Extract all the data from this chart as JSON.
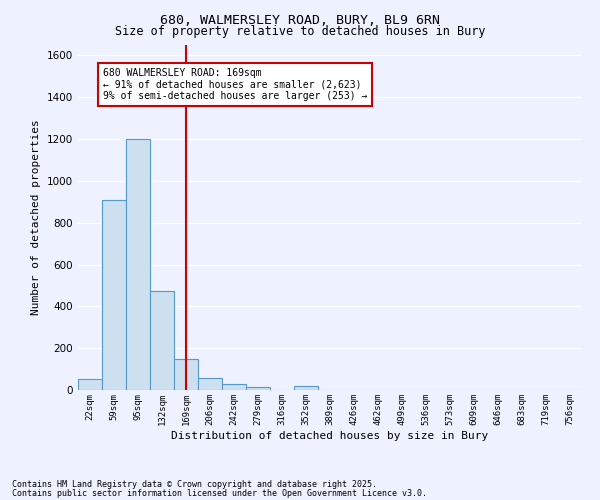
{
  "title1": "680, WALMERSLEY ROAD, BURY, BL9 6RN",
  "title2": "Size of property relative to detached houses in Bury",
  "xlabel": "Distribution of detached houses by size in Bury",
  "ylabel": "Number of detached properties",
  "bin_labels": [
    "22sqm",
    "59sqm",
    "95sqm",
    "132sqm",
    "169sqm",
    "206sqm",
    "242sqm",
    "279sqm",
    "316sqm",
    "352sqm",
    "389sqm",
    "426sqm",
    "462sqm",
    "499sqm",
    "536sqm",
    "573sqm",
    "609sqm",
    "646sqm",
    "683sqm",
    "719sqm",
    "756sqm"
  ],
  "bin_values": [
    55,
    910,
    1200,
    475,
    150,
    58,
    28,
    12,
    0,
    18,
    0,
    0,
    0,
    0,
    0,
    0,
    0,
    0,
    0,
    0,
    0
  ],
  "bar_color": "#cce0f0",
  "bar_edge_color": "#5599cc",
  "reference_line_x": 4,
  "ylim": [
    0,
    1650
  ],
  "yticks": [
    0,
    200,
    400,
    600,
    800,
    1000,
    1200,
    1400,
    1600
  ],
  "annotation_title": "680 WALMERSLEY ROAD: 169sqm",
  "annotation_line1": "← 91% of detached houses are smaller (2,623)",
  "annotation_line2": "9% of semi-detached houses are larger (253) →",
  "footnote1": "Contains HM Land Registry data © Crown copyright and database right 2025.",
  "footnote2": "Contains public sector information licensed under the Open Government Licence v3.0.",
  "bg_color": "#eef2ff",
  "grid_color": "#ffffff",
  "annotation_box_color": "#ffffff",
  "annotation_box_edge": "#cc0000",
  "ref_line_color": "#cc0000"
}
